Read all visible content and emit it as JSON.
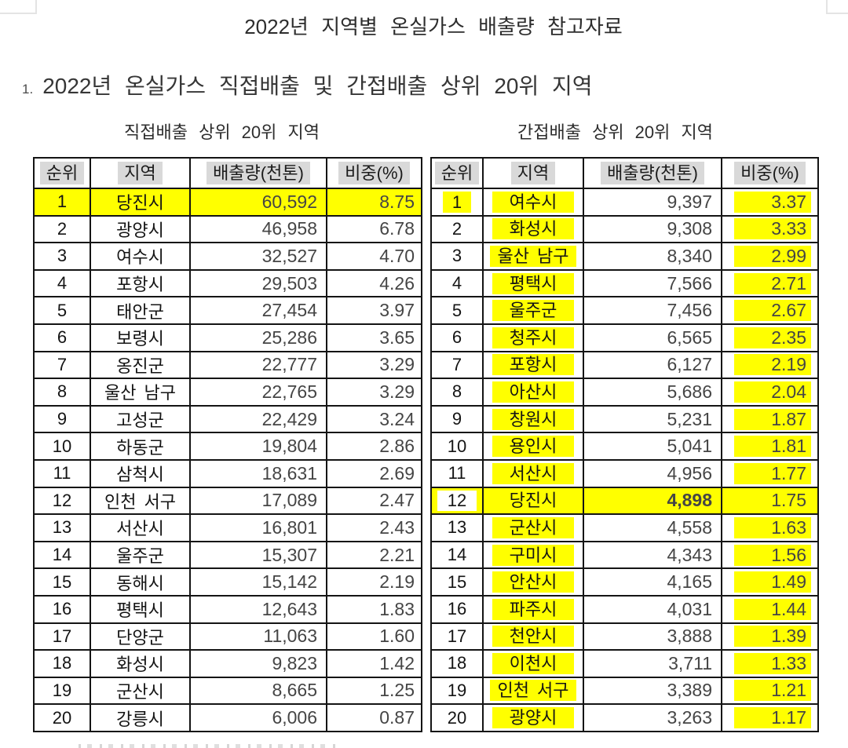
{
  "document": {
    "title": "2022년 지역별 온실가스 배출량 참고자료",
    "section": {
      "number": "1.",
      "title": "2022년 온실가스 직접배출 및 간접배출 상위 20위 지역"
    }
  },
  "colors": {
    "highlight_yellow": "#ffff00",
    "header_highlight_gray": "#d9d9d9"
  },
  "direct_table": {
    "subtitle": "직접배출 상위 20위 지역",
    "columns": [
      "순위",
      "지역",
      "배출량(천톤)",
      "비중(%)"
    ],
    "rows": [
      [
        "1",
        "당진시",
        "60,592",
        "8.75"
      ],
      [
        "2",
        "광양시",
        "46,958",
        "6.78"
      ],
      [
        "3",
        "여수시",
        "32,527",
        "4.70"
      ],
      [
        "4",
        "포항시",
        "29,503",
        "4.26"
      ],
      [
        "5",
        "태안군",
        "27,454",
        "3.97"
      ],
      [
        "6",
        "보령시",
        "25,286",
        "3.65"
      ],
      [
        "7",
        "옹진군",
        "22,777",
        "3.29"
      ],
      [
        "8",
        "울산 남구",
        "22,765",
        "3.29"
      ],
      [
        "9",
        "고성군",
        "22,429",
        "3.24"
      ],
      [
        "10",
        "하동군",
        "19,804",
        "2.86"
      ],
      [
        "11",
        "삼척시",
        "18,631",
        "2.69"
      ],
      [
        "12",
        "인천 서구",
        "17,089",
        "2.47"
      ],
      [
        "13",
        "서산시",
        "16,801",
        "2.43"
      ],
      [
        "14",
        "울주군",
        "15,307",
        "2.21"
      ],
      [
        "15",
        "동해시",
        "15,142",
        "2.19"
      ],
      [
        "16",
        "평택시",
        "12,643",
        "1.83"
      ],
      [
        "17",
        "단양군",
        "11,063",
        "1.60"
      ],
      [
        "18",
        "화성시",
        "9,823",
        "1.42"
      ],
      [
        "19",
        "군산시",
        "8,665",
        "1.25"
      ],
      [
        "20",
        "강릉시",
        "6,006",
        "0.87"
      ]
    ],
    "styles": {
      "full_highlight_ranks": [
        "1"
      ]
    }
  },
  "indirect_table": {
    "subtitle": "간접배출 상위 20위 지역",
    "columns": [
      "순위",
      "지역",
      "배출량(천톤)",
      "비중(%)"
    ],
    "rows": [
      [
        "1",
        "여수시",
        "9,397",
        "3.37"
      ],
      [
        "2",
        "화성시",
        "9,308",
        "3.33"
      ],
      [
        "3",
        "울산 남구",
        "8,340",
        "2.99"
      ],
      [
        "4",
        "평택시",
        "7,566",
        "2.71"
      ],
      [
        "5",
        "울주군",
        "7,456",
        "2.67"
      ],
      [
        "6",
        "청주시",
        "6,565",
        "2.35"
      ],
      [
        "7",
        "포항시",
        "6,127",
        "2.19"
      ],
      [
        "8",
        "아산시",
        "5,686",
        "2.04"
      ],
      [
        "9",
        "창원시",
        "5,231",
        "1.87"
      ],
      [
        "10",
        "용인시",
        "5,041",
        "1.81"
      ],
      [
        "11",
        "서산시",
        "4,956",
        "1.77"
      ],
      [
        "12",
        "당진시",
        "4,898",
        "1.75"
      ],
      [
        "13",
        "군산시",
        "4,558",
        "1.63"
      ],
      [
        "14",
        "구미시",
        "4,343",
        "1.56"
      ],
      [
        "15",
        "안산시",
        "4,165",
        "1.49"
      ],
      [
        "16",
        "파주시",
        "4,031",
        "1.44"
      ],
      [
        "17",
        "천안시",
        "3,888",
        "1.39"
      ],
      [
        "18",
        "이천시",
        "3,711",
        "1.33"
      ],
      [
        "19",
        "인천 서구",
        "3,389",
        "1.21"
      ],
      [
        "20",
        "광양시",
        "3,263",
        "1.17"
      ]
    ],
    "styles": {
      "full_highlight_ranks": [
        "12"
      ],
      "rank_highlight_ranks": [
        "1"
      ],
      "rank_whitebox_ranks": [
        "12"
      ],
      "region_highlight_all": true,
      "share_highlight_all": true,
      "bold_emission_ranks": [
        "12"
      ],
      "muted_region_ranks": [
        "12"
      ]
    }
  }
}
